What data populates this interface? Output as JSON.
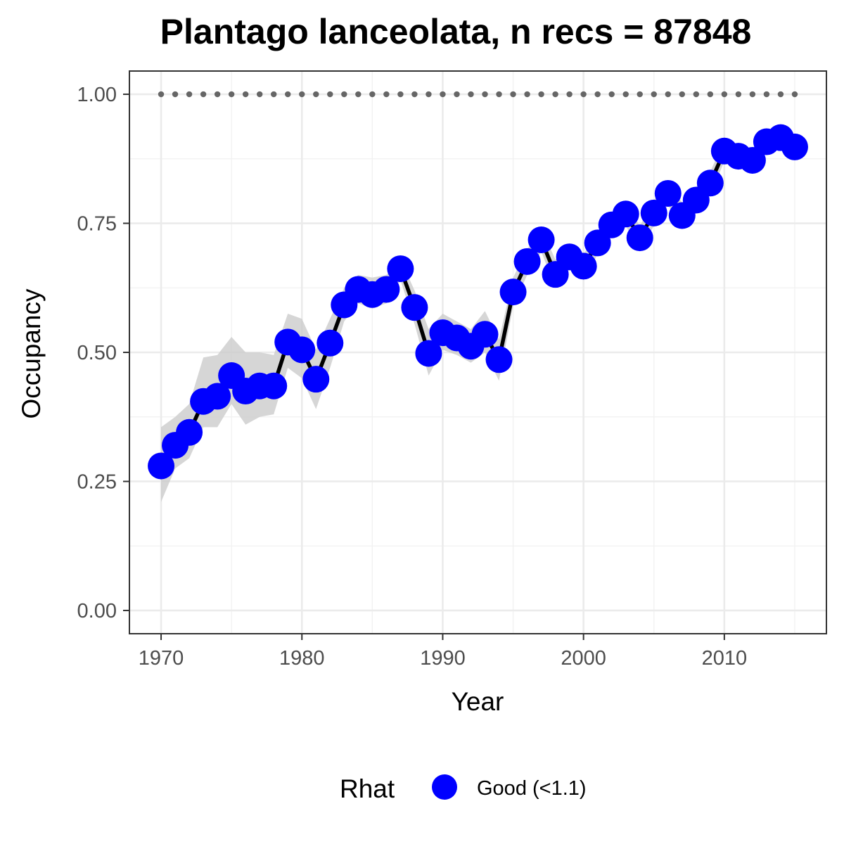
{
  "chart_data": {
    "type": "line",
    "title": "Plantago lanceolata, n recs = 87848",
    "xlabel": "Year",
    "ylabel": "Occupancy",
    "xlim": [
      1967.9,
      11017.1
    ],
    "ylim": [
      -0.045,
      1.045
    ],
    "x_ticks": [
      1970,
      1980,
      1990,
      2000,
      2010
    ],
    "x_tick_labels": [
      "1970",
      "1980",
      "1990",
      "2000",
      "2010"
    ],
    "y_ticks": [
      0,
      0.25,
      0.5,
      0.75,
      1
    ],
    "y_tick_labels": [
      "0.00",
      "0.25",
      "0.50",
      "0.75",
      "1.00"
    ],
    "grid": true,
    "legend": {
      "title": "Rhat",
      "position": "bottom",
      "entries": [
        {
          "label": "Good (<1.1)",
          "color": "#0000ff"
        }
      ]
    },
    "series": [
      {
        "kind": "mean",
        "legend_label": "Good (<1.1)",
        "color": "#0000ff",
        "line_color": "#000000",
        "x": [
          1970,
          1971,
          1972,
          1973,
          1974,
          1975,
          1976,
          1977,
          1978,
          1979,
          1980,
          1981,
          1982,
          1983,
          1984,
          1985,
          1986,
          1987,
          1988,
          1989,
          1990,
          1991,
          1992,
          1993,
          1994,
          1995,
          1996,
          1997,
          1998,
          1999,
          2000,
          2001,
          2002,
          2003,
          2004,
          2005,
          2006,
          2007,
          2008,
          2009,
          2010,
          2011,
          2012,
          2013,
          2014,
          2015
        ],
        "y": [
          0.28,
          0.32,
          0.345,
          0.405,
          0.415,
          0.455,
          0.425,
          0.435,
          0.435,
          0.52,
          0.505,
          0.448,
          0.518,
          0.592,
          0.622,
          0.612,
          0.622,
          0.662,
          0.587,
          0.498,
          0.538,
          0.528,
          0.512,
          0.535,
          0.486,
          0.617,
          0.676,
          0.718,
          0.651,
          0.685,
          0.667,
          0.712,
          0.747,
          0.768,
          0.722,
          0.77,
          0.808,
          0.765,
          0.795,
          0.828,
          0.89,
          0.88,
          0.872,
          0.908,
          0.916,
          0.898
        ]
      },
      {
        "kind": "ci_band",
        "color": "#cccccc",
        "x": [
          1970,
          1971,
          1972,
          1973,
          1974,
          1975,
          1976,
          1977,
          1978,
          1979,
          1980,
          1981,
          1982,
          1983,
          1984,
          1985,
          1986,
          1987,
          1988,
          1989,
          1990,
          1991,
          1992,
          1993,
          1994,
          1995,
          1996,
          1997,
          1998,
          1999,
          2000,
          2001,
          2002,
          2003,
          2004,
          2005,
          2006,
          2007,
          2008,
          2009,
          2010,
          2011,
          2012,
          2013,
          2014,
          2015
        ],
        "lower": [
          0.21,
          0.275,
          0.295,
          0.355,
          0.355,
          0.4,
          0.36,
          0.375,
          0.38,
          0.47,
          0.45,
          0.39,
          0.47,
          0.56,
          0.595,
          0.585,
          0.595,
          0.64,
          0.555,
          0.455,
          0.505,
          0.495,
          0.48,
          0.5,
          0.445,
          0.59,
          0.65,
          0.695,
          0.625,
          0.66,
          0.64,
          0.69,
          0.725,
          0.745,
          0.7,
          0.745,
          0.785,
          0.74,
          0.77,
          0.805,
          0.87,
          0.86,
          0.85,
          0.89,
          0.9,
          0.88
        ],
        "upper": [
          0.355,
          0.375,
          0.4,
          0.49,
          0.495,
          0.53,
          0.5,
          0.5,
          0.495,
          0.575,
          0.565,
          0.505,
          0.565,
          0.625,
          0.65,
          0.645,
          0.65,
          0.68,
          0.62,
          0.545,
          0.575,
          0.56,
          0.545,
          0.58,
          0.525,
          0.645,
          0.7,
          0.74,
          0.68,
          0.71,
          0.69,
          0.735,
          0.77,
          0.79,
          0.745,
          0.795,
          0.83,
          0.79,
          0.82,
          0.85,
          0.91,
          0.9,
          0.895,
          0.925,
          0.932,
          0.915
        ]
      },
      {
        "kind": "reference",
        "style": "dotted",
        "color": "#666666",
        "x": [
          1970,
          1971,
          1972,
          1973,
          1974,
          1975,
          1976,
          1977,
          1978,
          1979,
          1980,
          1981,
          1982,
          1983,
          1984,
          1985,
          1986,
          1987,
          1988,
          1989,
          1990,
          1991,
          1992,
          1993,
          1994,
          1995,
          1996,
          1997,
          1998,
          1999,
          2000,
          2001,
          2002,
          2003,
          2004,
          2005,
          2006,
          2007,
          2008,
          2009,
          2010,
          2011,
          2012,
          2013,
          2014,
          2015
        ],
        "y_const": 1.0
      }
    ]
  }
}
